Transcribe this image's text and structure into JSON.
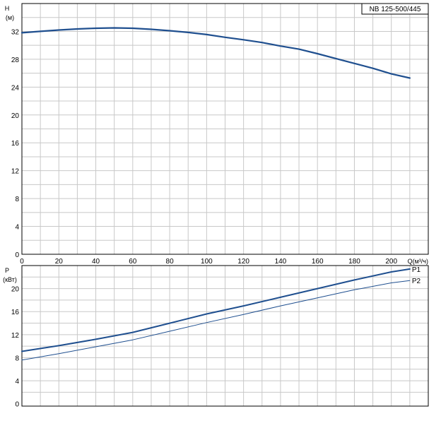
{
  "model_label": "NB 125-500/445",
  "chart_data": [
    {
      "type": "line",
      "name": "head",
      "ylabel": "H",
      "yunit": "(м)",
      "xlabel": "Q(м³/ч)",
      "xlim": [
        0,
        220
      ],
      "ylim": [
        0,
        36
      ],
      "xticks": [
        0,
        20,
        40,
        60,
        80,
        100,
        120,
        140,
        160,
        180,
        200
      ],
      "yticks": [
        0,
        4,
        8,
        12,
        16,
        20,
        24,
        28,
        32
      ],
      "grid": true,
      "series": [
        {
          "color": "#1f4f8f",
          "x": [
            0,
            10,
            20,
            30,
            40,
            50,
            60,
            70,
            80,
            90,
            100,
            110,
            120,
            130,
            140,
            150,
            160,
            170,
            180,
            190,
            200,
            210
          ],
          "y": [
            31.8,
            32.0,
            32.2,
            32.35,
            32.45,
            32.5,
            32.45,
            32.3,
            32.1,
            31.85,
            31.55,
            31.15,
            30.8,
            30.4,
            29.9,
            29.45,
            28.8,
            28.1,
            27.4,
            26.7,
            25.9,
            25.3
          ]
        }
      ]
    },
    {
      "type": "line",
      "name": "power",
      "ylabel": "P",
      "yunit": "(кВт)",
      "xlim": [
        0,
        220
      ],
      "ylim": [
        -0.4,
        24
      ],
      "xticks": [
        0,
        20,
        40,
        60,
        80,
        100,
        120,
        140,
        160,
        180,
        200
      ],
      "yticks": [
        0,
        4,
        8,
        12,
        16,
        20
      ],
      "grid": true,
      "series": [
        {
          "name": "P1",
          "color": "#1f4f8f",
          "x": [
            0,
            20,
            40,
            60,
            80,
            100,
            120,
            140,
            160,
            180,
            200,
            210
          ],
          "y": [
            9.1,
            10.1,
            11.2,
            12.4,
            14.0,
            15.6,
            17.0,
            18.5,
            20.0,
            21.5,
            22.9,
            23.4
          ]
        },
        {
          "name": "P2",
          "color": "#1f4f8f",
          "x": [
            0,
            20,
            40,
            60,
            80,
            100,
            120,
            140,
            160,
            180,
            200,
            210
          ],
          "y": [
            7.6,
            8.7,
            9.9,
            11.1,
            12.6,
            14.1,
            15.5,
            17.0,
            18.4,
            19.8,
            21.0,
            21.4
          ]
        }
      ]
    }
  ]
}
